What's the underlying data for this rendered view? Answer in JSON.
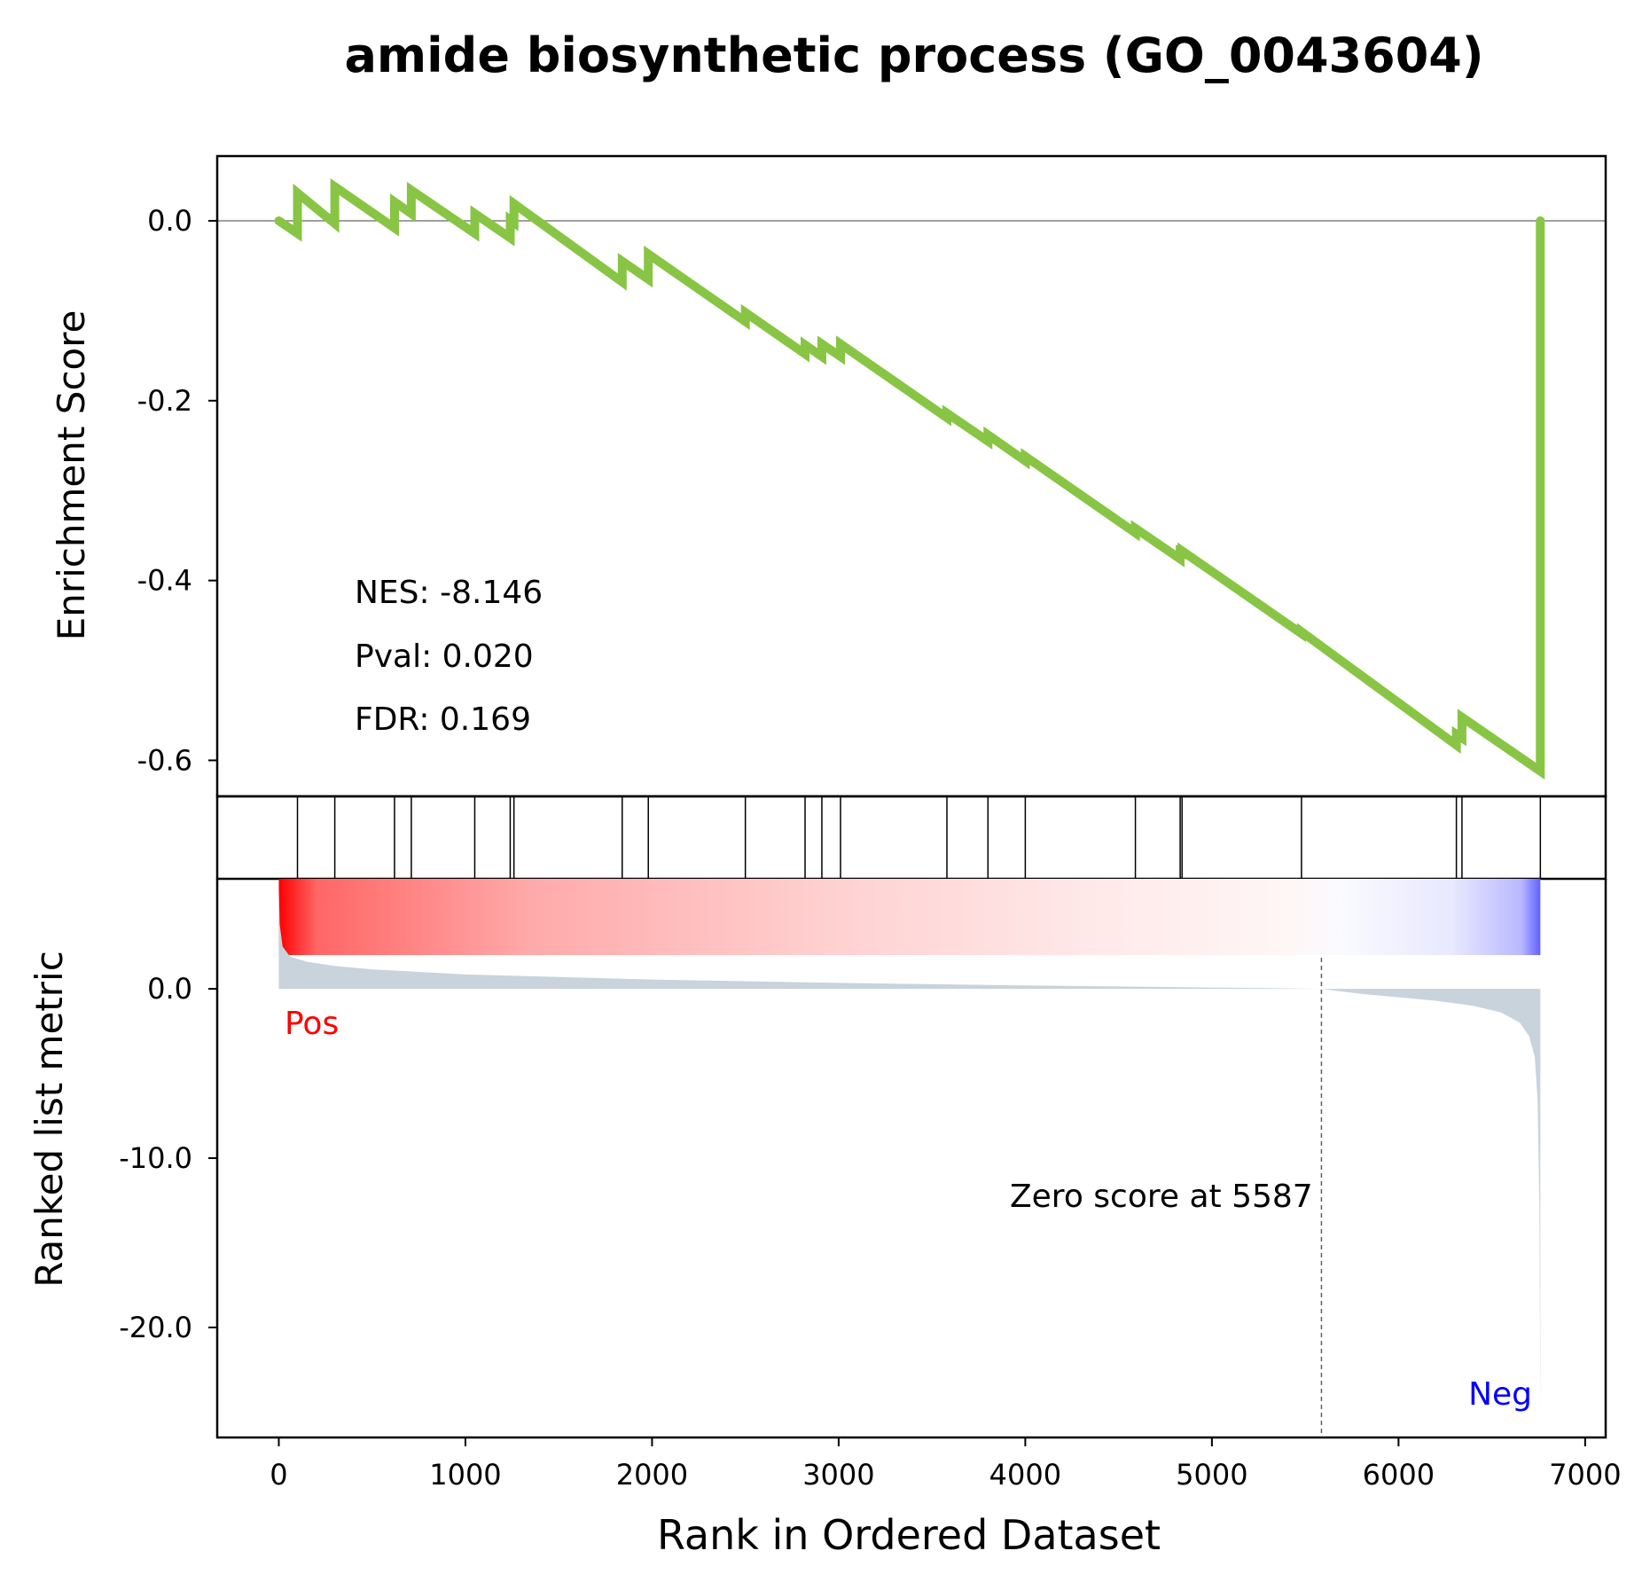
{
  "chart_data": {
    "type": "line",
    "title": "amide biosynthetic process (GO_0043604)",
    "xlabel": "Rank in Ordered Dataset",
    "xlim": [
      -330,
      7110
    ],
    "x_ticks": [
      0,
      1000,
      2000,
      3000,
      4000,
      5000,
      6000,
      7000
    ],
    "es_panel": {
      "ylabel": "Enrichment Score",
      "ylim": [
        -0.64,
        0.072
      ],
      "y_ticks": [
        0.0,
        -0.2,
        -0.4,
        -0.6
      ],
      "y_tick_labels": [
        "0.0",
        "-0.2",
        "-0.4",
        "-0.6"
      ],
      "line_color": "#88c544",
      "series": [
        {
          "x": [
            0,
            100,
            100,
            300,
            300,
            620,
            620,
            710,
            710,
            1050,
            1050,
            1240,
            1240,
            1260,
            1260,
            1840,
            1840,
            1980,
            1980,
            2500,
            2500,
            2820,
            2820,
            2910,
            2910,
            3010,
            3010,
            3580,
            3580,
            3800,
            3800,
            4000,
            4000,
            4590,
            4590,
            4830,
            4830,
            4840,
            4840,
            5480,
            5480,
            6310,
            6310,
            6340,
            6340,
            6760,
            6760
          ],
          "y": [
            0.0,
            -0.014,
            0.031,
            -0.003,
            0.038,
            -0.008,
            0.021,
            0.008,
            0.034,
            -0.014,
            0.008,
            -0.019,
            0.001,
            -0.002,
            0.019,
            -0.068,
            -0.045,
            -0.065,
            -0.037,
            -0.112,
            -0.102,
            -0.148,
            -0.138,
            -0.151,
            -0.137,
            -0.151,
            -0.137,
            -0.219,
            -0.214,
            -0.245,
            -0.238,
            -0.267,
            -0.262,
            -0.347,
            -0.342,
            -0.376,
            -0.368,
            -0.369,
            -0.367,
            -0.459,
            -0.457,
            -0.583,
            -0.571,
            -0.575,
            -0.552,
            -0.612,
            0.0
          ]
        }
      ]
    },
    "hits": [
      100,
      300,
      620,
      710,
      1050,
      1240,
      1260,
      1840,
      1980,
      2500,
      2820,
      2910,
      3010,
      3580,
      3800,
      4000,
      4590,
      4830,
      4840,
      5480,
      6310,
      6340,
      6760
    ],
    "ranked_metric_panel": {
      "ylabel": "Ranked list metric",
      "ylim": [
        -26.5,
        6.5
      ],
      "y_ticks": [
        0.0,
        -10.0,
        -20.0
      ],
      "y_tick_labels": [
        "0.0",
        "-10.0",
        "-20.0"
      ],
      "fill_color": "#c8d3dc",
      "metric": {
        "x": [
          0,
          5,
          20,
          60,
          150,
          300,
          500,
          1000,
          2000,
          3000,
          4000,
          5000,
          5400,
          5587,
          5800,
          6000,
          6200,
          6400,
          6550,
          6650,
          6700,
          6730,
          6745,
          6755,
          6760
        ],
        "y": [
          6.0,
          3.8,
          2.5,
          1.9,
          1.6,
          1.35,
          1.15,
          0.85,
          0.55,
          0.35,
          0.2,
          0.08,
          0.03,
          0.0,
          -0.3,
          -0.5,
          -0.7,
          -1.0,
          -1.4,
          -2.0,
          -2.8,
          -4.0,
          -6.5,
          -13.0,
          -25.0
        ]
      },
      "zero_cross_rank": 5587,
      "zero_score_label": "Zero score at 5587",
      "pos_label": "Pos",
      "neg_label": "Neg",
      "pos_color": "#ff0000",
      "neg_color": "#0000ff"
    },
    "stats": {
      "nes": "NES: -8.146",
      "pval": "Pval: 0.020",
      "fdr": "FDR: 0.169"
    }
  }
}
